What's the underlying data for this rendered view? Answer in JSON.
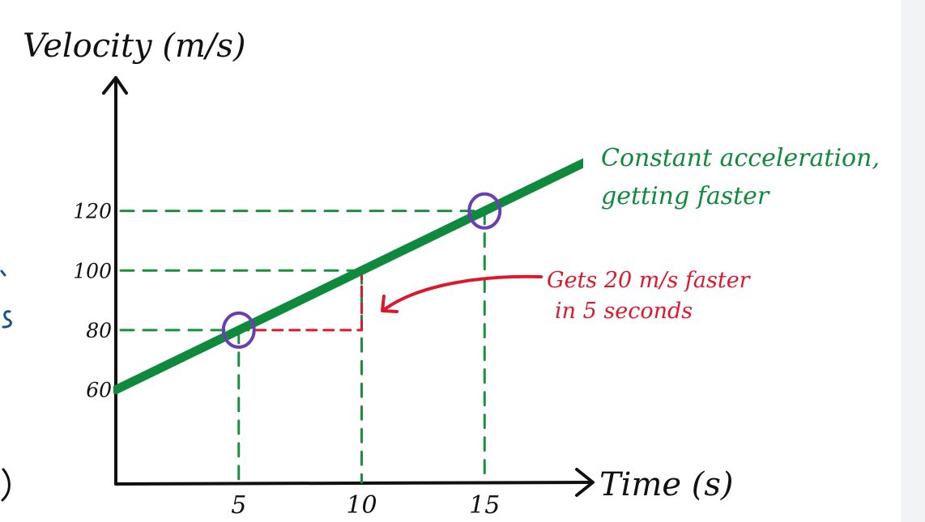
{
  "chart_data": {
    "type": "line",
    "xlabel": "Time (s)",
    "ylabel": "Velocity (m/s)",
    "x_ticks": [
      "5",
      "10",
      "15"
    ],
    "y_ticks": [
      "60",
      "80",
      "100",
      "120"
    ],
    "xlim": [
      0,
      20
    ],
    "ylim": [
      30,
      140
    ],
    "series": [
      {
        "x": [
          0,
          20
        ],
        "y": [
          60,
          140
        ]
      }
    ],
    "highlighted_points": [
      {
        "x": 5,
        "y": 80
      },
      {
        "x": 15,
        "y": 120
      }
    ],
    "annotations": {
      "line_label_1": "Constant acceleration,",
      "line_label_2": "getting faster",
      "change_label_1": "Gets 20 m/s faster",
      "change_label_2": "in 5 seconds"
    },
    "colors": {
      "line": "#0f8a3c",
      "guides": "#1a8f3e",
      "change": "#e0162b",
      "circles": "#6a3fb5",
      "axes": "#111111",
      "cropped_left": "#1a4f8f"
    }
  }
}
